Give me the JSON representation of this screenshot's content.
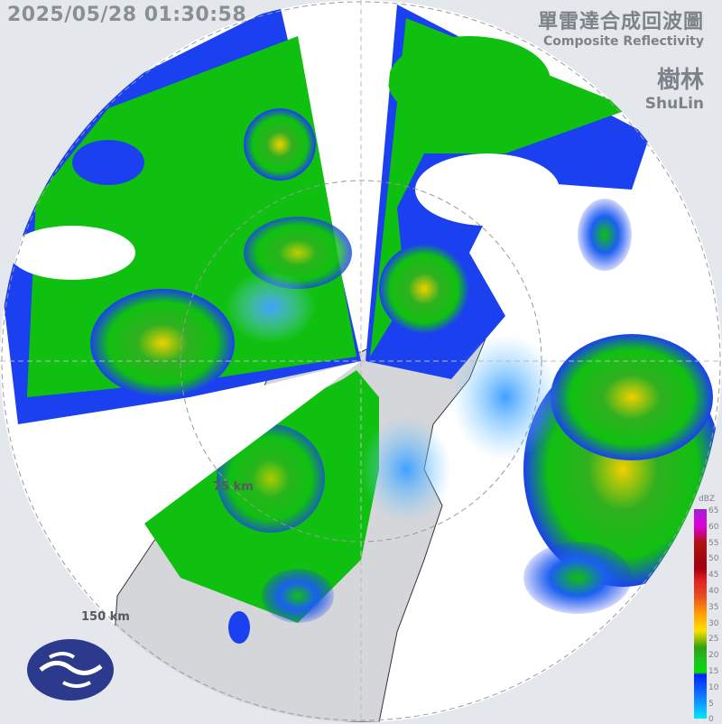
{
  "timestamp": "2025/05/28 01:30:58",
  "title": {
    "zh": "單雷達合成回波圖",
    "en": "Composite Reflectivity"
  },
  "station": {
    "zh": "樹林",
    "en": "ShuLin"
  },
  "range_rings": {
    "inner": "75 km",
    "outer": "150 km"
  },
  "legend": {
    "unit": "dBZ",
    "ticks": [
      "65",
      "60",
      "55",
      "50",
      "45",
      "40",
      "35",
      "30",
      "25",
      "20",
      "15",
      "10",
      "5",
      "0"
    ]
  },
  "colors": {
    "background": "#e4e7ec",
    "land": "#d4d6d9",
    "no_echo": "#ffffff",
    "logo": "#2b3a8c"
  },
  "logo": "cwa-logo-icon"
}
